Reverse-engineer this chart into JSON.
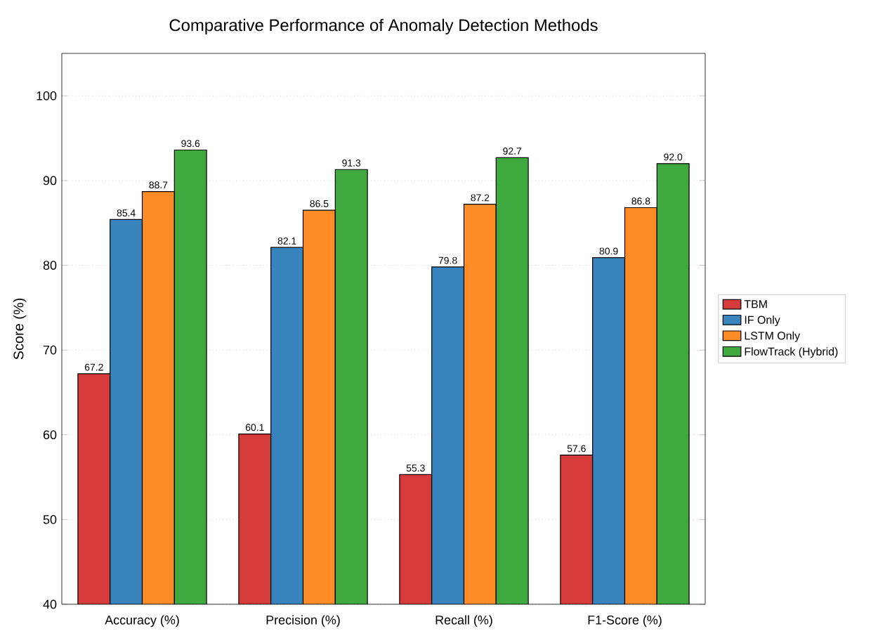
{
  "chart_data": {
    "type": "bar",
    "title": "Comparative Performance of Anomaly Detection Methods",
    "ylabel": "Score (%)",
    "categories": [
      "Accuracy (%)",
      "Precision (%)",
      "Recall (%)",
      "F1-Score (%)"
    ],
    "series": [
      {
        "name": "TBM",
        "color": "#d63b3b",
        "values": [
          67.2,
          60.1,
          55.3,
          57.6
        ],
        "value_labels": [
          "67.2",
          "60.1",
          "55.3",
          "57.6"
        ]
      },
      {
        "name": "IF Only",
        "color": "#3a84be",
        "values": [
          85.4,
          82.1,
          79.8,
          80.9
        ],
        "value_labels": [
          "85.4",
          "82.1",
          "79.8",
          "80.9"
        ]
      },
      {
        "name": "LSTM Only",
        "color": "#fd8c28",
        "values": [
          88.7,
          86.5,
          87.2,
          86.8
        ],
        "value_labels": [
          "88.7",
          "86.5",
          "87.2",
          "86.8"
        ]
      },
      {
        "name": "FlowTrack (Hybrid)",
        "color": "#3fa83f",
        "values": [
          93.6,
          91.3,
          92.7,
          92.0
        ],
        "value_labels": [
          "93.6",
          "91.3",
          "92.7",
          "92.0"
        ]
      }
    ],
    "ylim": [
      40,
      105
    ],
    "yticks": [
      40,
      50,
      60,
      70,
      80,
      90,
      100
    ],
    "grid": "y",
    "legend": "right"
  }
}
